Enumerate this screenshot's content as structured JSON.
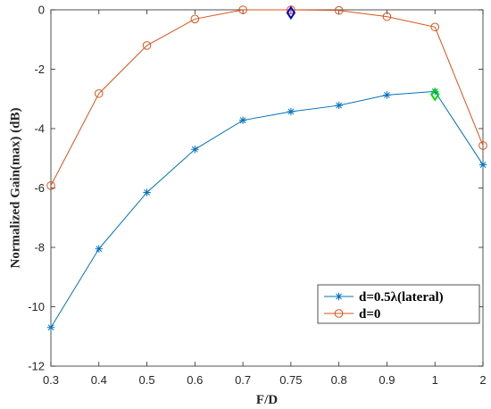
{
  "chart_data": {
    "type": "line",
    "categories": [
      "0.3",
      "0.4",
      "0.5",
      "0.6",
      "0.7",
      "0.75",
      "0.8",
      "0.9",
      "1",
      "2"
    ],
    "xlabel": "F/D",
    "ylabel": "Normalized Gain(max) (dB)",
    "ylim": [
      -12,
      0
    ],
    "yticks": [
      0,
      -2,
      -4,
      -6,
      -8,
      -10,
      -12
    ],
    "ytick_labels": [
      "0",
      "-2",
      "-4",
      "-6",
      "-8",
      "-10",
      "-12"
    ],
    "legend_position": "bottom-right",
    "grid": false,
    "series": [
      {
        "name": "d=0.5λ(lateral)",
        "color": "#0072BD",
        "marker": "asterisk",
        "values": [
          -10.7,
          -8.05,
          -6.15,
          -4.7,
          -3.72,
          -3.43,
          -3.22,
          -2.87,
          -2.75,
          -5.22
        ]
      },
      {
        "name": "d=0",
        "color": "#D95319",
        "marker": "circle",
        "values": [
          -5.92,
          -2.82,
          -1.2,
          -0.31,
          0,
          0,
          -0.02,
          -0.23,
          -0.58,
          -4.57
        ]
      }
    ],
    "highlights": [
      {
        "category": "0.75",
        "value": -0.1,
        "color": "#0000CC",
        "marker": "diamond"
      },
      {
        "category": "1",
        "value": -2.85,
        "color": "#00DD00",
        "marker": "diamond"
      }
    ]
  }
}
